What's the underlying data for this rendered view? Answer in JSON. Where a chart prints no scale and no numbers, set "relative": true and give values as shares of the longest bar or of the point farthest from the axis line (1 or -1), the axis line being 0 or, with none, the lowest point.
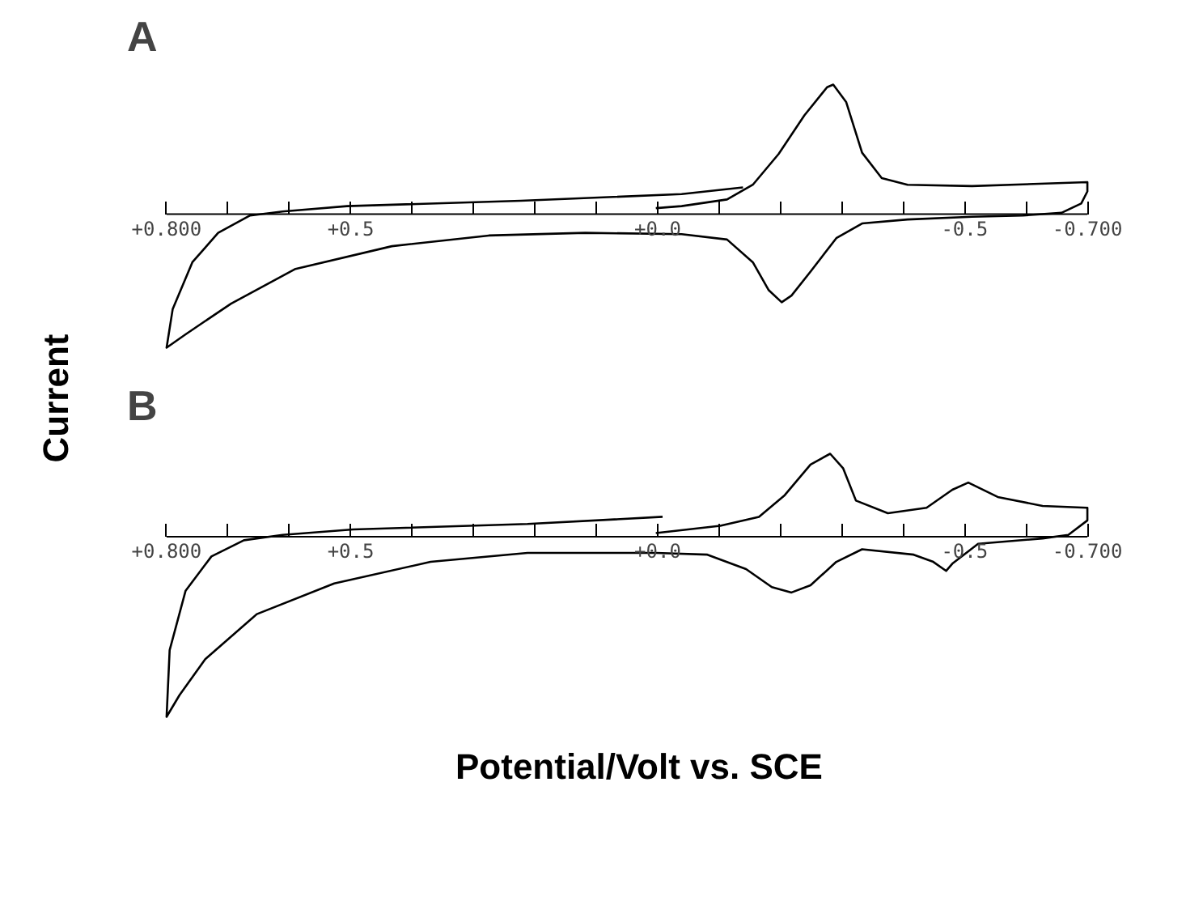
{
  "chart_data": [
    {
      "type": "line",
      "title": "A",
      "ylabel": "Current",
      "relative": true,
      "xlim": [
        0.8,
        -0.7
      ],
      "xticks": [
        {
          "value": 0.8,
          "label": "+0.800"
        },
        {
          "value": 0.7,
          "label": null
        },
        {
          "value": 0.6,
          "label": null
        },
        {
          "value": 0.5,
          "label": "+0.5"
        },
        {
          "value": 0.4,
          "label": null
        },
        {
          "value": 0.3,
          "label": null
        },
        {
          "value": 0.2,
          "label": null
        },
        {
          "value": 0.1,
          "label": null
        },
        {
          "value": 0.0,
          "label": "+0.0"
        },
        {
          "value": -0.1,
          "label": null
        },
        {
          "value": -0.2,
          "label": null
        },
        {
          "value": -0.3,
          "label": null
        },
        {
          "value": -0.4,
          "label": null
        },
        {
          "value": -0.5,
          "label": "-0.5"
        },
        {
          "value": -0.6,
          "label": null
        },
        {
          "value": -0.7,
          "label": "-0.700"
        }
      ],
      "series": [
        {
          "color": "#000000",
          "x": [
            0.003,
            -0.039,
            -0.113,
            -0.155,
            -0.197,
            -0.239,
            -0.276,
            -0.286,
            -0.307,
            -0.333,
            -0.365,
            -0.407,
            -0.512,
            -0.7,
            -0.7,
            -0.69,
            -0.658,
            -0.595,
            -0.512,
            -0.407,
            -0.333,
            -0.291,
            -0.249,
            -0.218,
            -0.202,
            -0.181,
            -0.155,
            -0.113,
            -0.039,
            0.118,
            0.275,
            0.433,
            0.59,
            0.695,
            0.769,
            0.8,
            0.79,
            0.758,
            0.716,
            0.664,
            0.611,
            0.506,
            0.223,
            -0.039,
            -0.139
          ],
          "values": [
            0.045,
            0.06,
            0.11,
            0.22,
            0.45,
            0.74,
            0.95,
            0.97,
            0.84,
            0.46,
            0.27,
            0.22,
            0.21,
            0.24,
            0.17,
            0.08,
            0.01,
            -0.01,
            -0.02,
            -0.04,
            -0.07,
            -0.18,
            -0.43,
            -0.61,
            -0.66,
            -0.57,
            -0.36,
            -0.19,
            -0.15,
            -0.14,
            -0.16,
            -0.24,
            -0.41,
            -0.67,
            -0.9,
            -1.0,
            -0.71,
            -0.36,
            -0.14,
            -0.01,
            0.02,
            0.06,
            0.1,
            0.15,
            0.2
          ]
        }
      ]
    },
    {
      "type": "line",
      "title": "B",
      "xlabel": "Potential/Volt vs. SCE",
      "relative": true,
      "xlim": [
        0.8,
        -0.7
      ],
      "xticks": [
        {
          "value": 0.8,
          "label": "+0.800"
        },
        {
          "value": 0.7,
          "label": null
        },
        {
          "value": 0.6,
          "label": null
        },
        {
          "value": 0.5,
          "label": "+0.5"
        },
        {
          "value": 0.4,
          "label": null
        },
        {
          "value": 0.3,
          "label": null
        },
        {
          "value": 0.2,
          "label": null
        },
        {
          "value": 0.1,
          "label": null
        },
        {
          "value": 0.0,
          "label": "+0.0"
        },
        {
          "value": -0.1,
          "label": null
        },
        {
          "value": -0.2,
          "label": null
        },
        {
          "value": -0.3,
          "label": null
        },
        {
          "value": -0.4,
          "label": null
        },
        {
          "value": -0.5,
          "label": "-0.5"
        },
        {
          "value": -0.6,
          "label": null
        },
        {
          "value": -0.7,
          "label": "-0.700"
        }
      ],
      "series": [
        {
          "color": "#000000",
          "x": [
            0.003,
            -0.102,
            -0.165,
            -0.207,
            -0.249,
            -0.281,
            -0.302,
            -0.323,
            -0.375,
            -0.438,
            -0.48,
            -0.506,
            -0.554,
            -0.627,
            -0.7,
            -0.7,
            -0.669,
            -0.627,
            -0.522,
            -0.48,
            -0.47,
            -0.449,
            -0.417,
            -0.333,
            -0.291,
            -0.249,
            -0.218,
            -0.186,
            -0.144,
            -0.081,
            0.003,
            0.212,
            0.37,
            0.527,
            0.653,
            0.737,
            0.779,
            0.8,
            0.795,
            0.769,
            0.727,
            0.674,
            0.611,
            0.496,
            0.212,
            -0.008
          ],
          "values": [
            0.02,
            0.06,
            0.11,
            0.23,
            0.4,
            0.46,
            0.38,
            0.2,
            0.13,
            0.16,
            0.26,
            0.3,
            0.22,
            0.17,
            0.16,
            0.09,
            0.01,
            -0.01,
            -0.04,
            -0.15,
            -0.19,
            -0.14,
            -0.1,
            -0.07,
            -0.14,
            -0.27,
            -0.31,
            -0.28,
            -0.18,
            -0.1,
            -0.09,
            -0.09,
            -0.14,
            -0.26,
            -0.43,
            -0.68,
            -0.88,
            -1.0,
            -0.63,
            -0.3,
            -0.11,
            -0.02,
            0.01,
            0.04,
            0.07,
            0.11
          ]
        }
      ]
    }
  ]
}
